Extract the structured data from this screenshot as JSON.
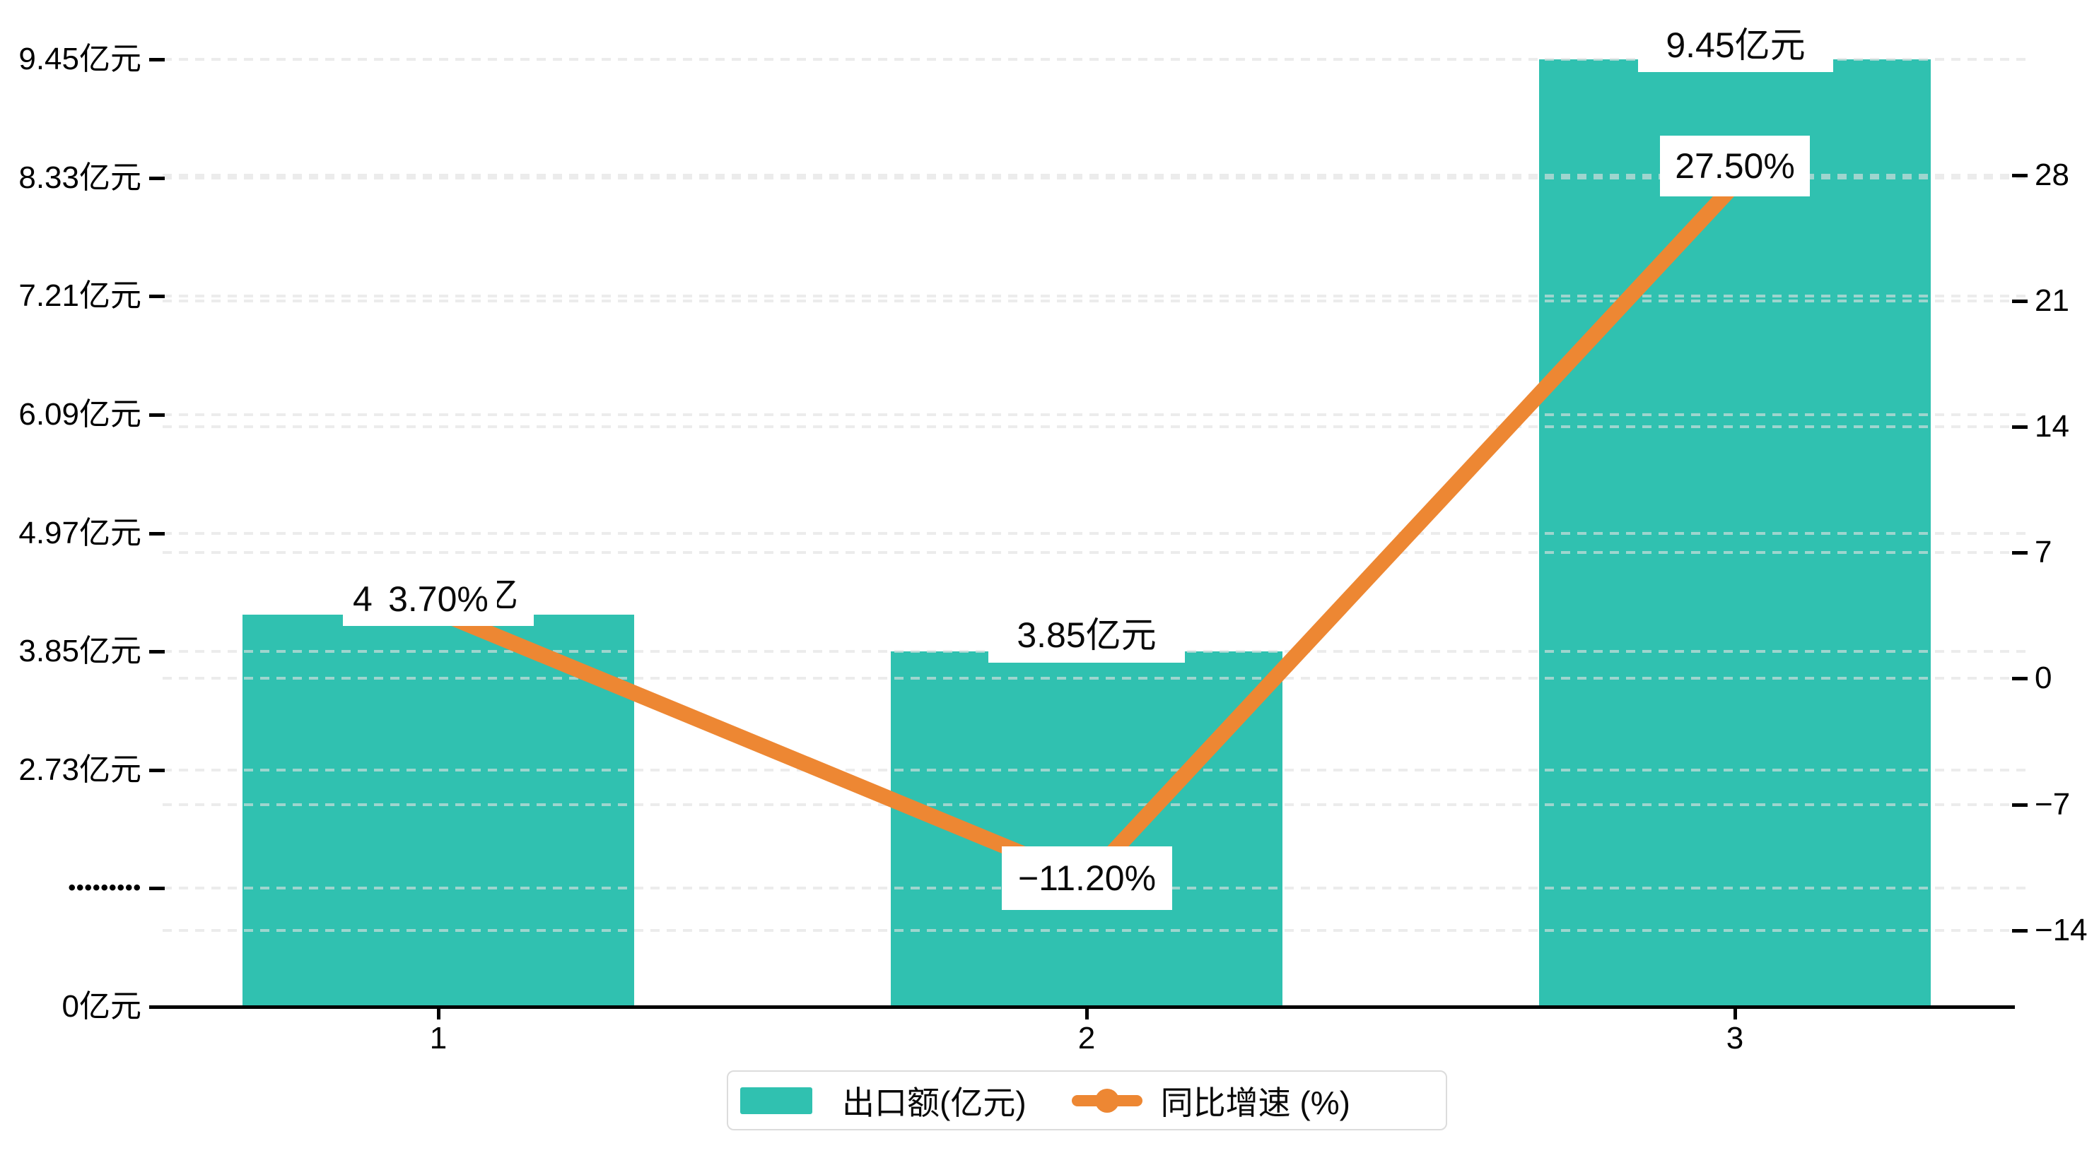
{
  "chart_data": {
    "type": "bar",
    "subtype": "combo-bar-line-dual-axis",
    "categories": [
      "1",
      "2",
      "3"
    ],
    "series": [
      {
        "name": "出口额(亿元)",
        "type": "bar",
        "axis": "left",
        "unit": "亿元",
        "values": [
          4.2,
          3.85,
          9.45
        ],
        "point_labels": [
          "4.2亿元",
          "3.85亿元",
          "9.45亿元"
        ],
        "note": "first bar label is partially covered by the 3.70% line label; only '4' and the right part of '亿' remain visible"
      },
      {
        "name": "同比增速 (%)",
        "type": "line",
        "axis": "right",
        "unit": "%",
        "values": [
          3.7,
          -11.2,
          27.5
        ],
        "point_labels": [
          "3.70%",
          "−11.20%",
          "27.50%"
        ]
      }
    ],
    "title": "",
    "xlabel": "",
    "ylabel_left": "亿元",
    "ylabel_right": "%",
    "left_axis_ticks": [
      "9.45亿元",
      "8.33亿元",
      "7.21亿元",
      "6.09亿元",
      "4.97亿元",
      "3.85亿元",
      "2.73亿元",
      "•••••••••",
      "0亿元"
    ],
    "left_axis_break": "tick between 0 and 2.73 is rendered as a dotted placeholder (axis break at 1.61)",
    "right_axis_ticks": [
      "28",
      "21",
      "14",
      "7",
      "0",
      "−7",
      "−14"
    ],
    "left_axis_range": [
      0,
      9.45
    ],
    "right_axis_range": [
      -14,
      28
    ],
    "grid": "horizontal dashed gridlines for both left and right axis ticks",
    "legend_position": "bottom-center"
  },
  "overlay_labels": {
    "bar1_prefix": "4",
    "bar1_pct": "3.70%",
    "bar1_partial": "亿",
    "bar2_value": "3.85亿元",
    "bar3_value": "9.45亿元",
    "pct2": "−11.20%",
    "pct3": "27.50%"
  },
  "legend": {
    "items": [
      {
        "label": "出口额(亿元)",
        "marker": "bar-swatch"
      },
      {
        "label": "同比增速 (%)",
        "marker": "line-with-dot"
      }
    ]
  },
  "colors": {
    "bar": "#30C1B0",
    "line": "#ED8733",
    "grid": "#e1e1e1",
    "axis": "#000000",
    "text": "#0a0a0a",
    "label_bg": "#ffffff",
    "legend_border": "#dcdcdc"
  }
}
